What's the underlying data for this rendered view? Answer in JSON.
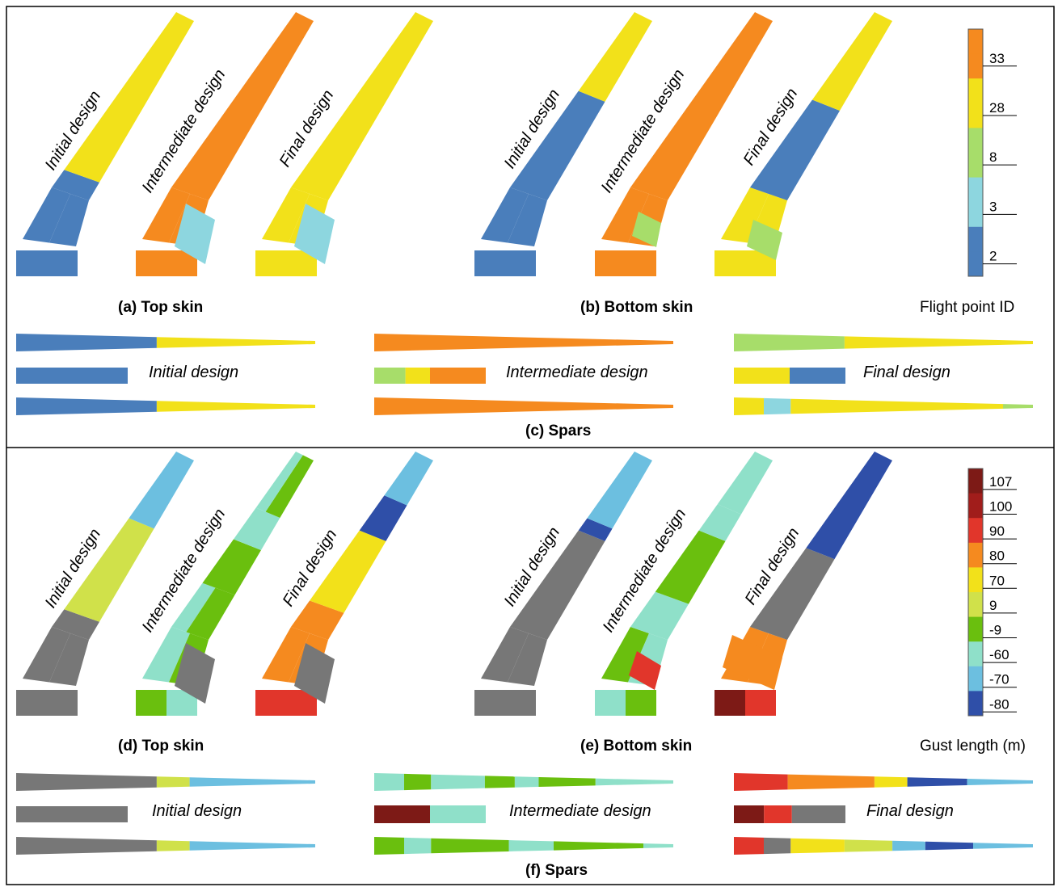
{
  "colors": {
    "fp2": "#4a7ebb",
    "fp3": "#8dd6df",
    "fp8": "#a7dd6a",
    "fp28": "#f2e11a",
    "fp33": "#f58a1f",
    "g107": "#7d1a16",
    "g100": "#a11d1b",
    "g90": "#e1362b",
    "g80": "#f58a1f",
    "g70": "#f2e11a",
    "g9": "#d0e14a",
    "gm9": "#6abf0e",
    "gm60": "#8fe0c9",
    "gm70": "#6cbfe0",
    "gm80": "#2f4fa8",
    "grey": "#777777"
  },
  "panels": {
    "a": {
      "caption": "(a) Top skin"
    },
    "b": {
      "caption": "(b) Bottom skin"
    },
    "c": {
      "caption": "(c) Spars"
    },
    "d": {
      "caption": "(d) Top skin"
    },
    "e": {
      "caption": "(e) Bottom skin"
    },
    "f": {
      "caption": "(f) Spars"
    }
  },
  "design_labels": {
    "initial": "Initial design",
    "intermediate": "Intermediate design",
    "final": "Final design"
  },
  "legend_top": {
    "title": "Flight point ID",
    "ticks": [
      "33",
      "28",
      "8",
      "3",
      "2"
    ]
  },
  "legend_bottom": {
    "title": "Gust length (m)",
    "ticks": [
      "107",
      "100",
      "90",
      "80",
      "70",
      "9",
      "-9",
      "-60",
      "-70",
      "-80"
    ]
  }
}
